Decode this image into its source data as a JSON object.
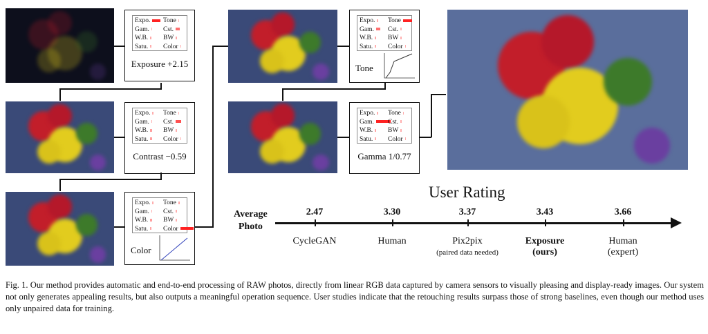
{
  "steps": [
    {
      "label": "Exposure +2.15",
      "ops": [
        {
          "name": "Expo.",
          "w": 1
        },
        {
          "name": "Tone",
          "w": 0.1
        },
        {
          "name": "Gam.",
          "w": 0.1
        },
        {
          "name": "Cst.",
          "w": 0.5
        },
        {
          "name": "W.B.",
          "w": 0.15
        },
        {
          "name": "BW",
          "w": 0.15
        },
        {
          "name": "Satu.",
          "w": 0.1
        },
        {
          "name": "Color",
          "w": 0.1
        }
      ]
    },
    {
      "label": "Contrast −0.59",
      "ops": [
        {
          "name": "Expo.",
          "w": 0.1
        },
        {
          "name": "Tone",
          "w": 0.1
        },
        {
          "name": "Gam.",
          "w": 0.1
        },
        {
          "name": "Cst.",
          "w": 0.7
        },
        {
          "name": "W.B.",
          "w": 0.2
        },
        {
          "name": "BW",
          "w": 0.1
        },
        {
          "name": "Satu.",
          "w": 0.2
        },
        {
          "name": "Color",
          "w": 0.1
        }
      ]
    },
    {
      "label": "Color",
      "ops": [
        {
          "name": "Expo.",
          "w": 0.1
        },
        {
          "name": "Tone",
          "w": 0.15
        },
        {
          "name": "Gam.",
          "w": 0.1
        },
        {
          "name": "Cst.",
          "w": 0.1
        },
        {
          "name": "W.B.",
          "w": 0.2
        },
        {
          "name": "BW",
          "w": 0.1
        },
        {
          "name": "Satu.",
          "w": 0.15
        },
        {
          "name": "Color",
          "w": 1.6
        }
      ]
    },
    {
      "label": "Tone",
      "ops": [
        {
          "name": "Expo.",
          "w": 0.1
        },
        {
          "name": "Tone",
          "w": 1.1
        },
        {
          "name": "Gam.",
          "w": 0.5
        },
        {
          "name": "Cst.",
          "w": 0.1
        },
        {
          "name": "W.B.",
          "w": 0.15
        },
        {
          "name": "BW",
          "w": 0.1
        },
        {
          "name": "Satu.",
          "w": 0.1
        },
        {
          "name": "Color",
          "w": 0.1
        }
      ]
    },
    {
      "label": "Gamma 1/0.77",
      "ops": [
        {
          "name": "Expo.",
          "w": 0.1
        },
        {
          "name": "Tone",
          "w": 0.1
        },
        {
          "name": "Gam.",
          "w": 1.8
        },
        {
          "name": "Cst.",
          "w": 0.1
        },
        {
          "name": "W.B.",
          "w": 0.15
        },
        {
          "name": "BW",
          "w": 0.1
        },
        {
          "name": "Satu.",
          "w": 0.1
        },
        {
          "name": "Color",
          "w": 0.1
        }
      ]
    }
  ],
  "rating": {
    "title": "User Rating",
    "axis_label": "Average\nPhoto",
    "entries": [
      {
        "value": "2.47",
        "label": "CycleGAN",
        "sub": ""
      },
      {
        "value": "3.30",
        "label": "Human",
        "sub": ""
      },
      {
        "value": "3.37",
        "label": "Pix2pix",
        "sub": "(paired data needed)"
      },
      {
        "value": "3.43",
        "label": "Exposure\n(ours)",
        "sub": "",
        "bold": true
      },
      {
        "value": "3.66",
        "label": "Human\n(expert)",
        "sub": ""
      }
    ]
  },
  "caption": "Fig. 1.  Our method provides automatic and end-to-end processing of RAW photos, directly from linear RGB data captured by camera sensors to visually pleasing and display-ready images. Our system not only generates appealing results, but also outputs a meaningful operation sequence. User studies indicate that the retouching results surpass those of strong baselines, even though our method uses only unpaired data for training."
}
